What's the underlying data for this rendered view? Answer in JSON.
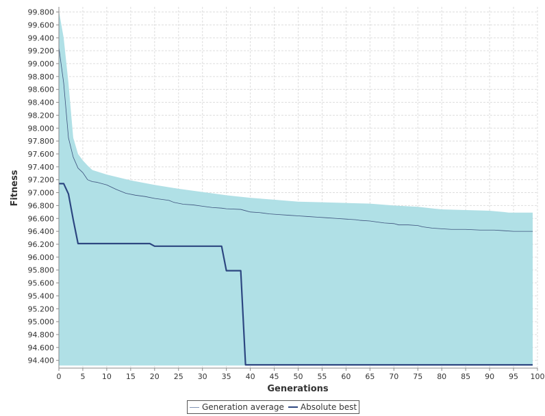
{
  "chart_data": {
    "type": "area",
    "xlabel": "Generations",
    "ylabel": "Fitness",
    "xlim": [
      0,
      100
    ],
    "ylim": [
      94.28,
      99.88
    ],
    "x_ticks": [
      0,
      5,
      10,
      15,
      20,
      25,
      30,
      35,
      40,
      45,
      50,
      55,
      60,
      65,
      70,
      75,
      80,
      85,
      90,
      95,
      100
    ],
    "y_ticks": [
      "94.400",
      "94.600",
      "94.800",
      "95.000",
      "95.200",
      "95.400",
      "95.600",
      "95.800",
      "96.000",
      "96.200",
      "96.400",
      "96.600",
      "96.800",
      "97.000",
      "97.200",
      "97.400",
      "97.600",
      "97.800",
      "98.000",
      "98.200",
      "98.400",
      "98.600",
      "98.800",
      "99.000",
      "99.200",
      "99.400",
      "99.600",
      "99.800"
    ],
    "grid": true,
    "legend_position": "bottom",
    "band": {
      "x": [
        0,
        1,
        2,
        3,
        4,
        5,
        6,
        7,
        10,
        15,
        20,
        25,
        30,
        35,
        40,
        45,
        50,
        55,
        60,
        65,
        70,
        75,
        80,
        85,
        90,
        93,
        94,
        99
      ],
      "upper": [
        99.82,
        99.4,
        98.7,
        97.85,
        97.6,
        97.5,
        97.42,
        97.35,
        97.28,
        97.19,
        97.12,
        97.06,
        97.01,
        96.96,
        96.92,
        96.89,
        96.86,
        96.85,
        96.84,
        96.83,
        96.8,
        96.78,
        96.74,
        96.73,
        96.72,
        96.7,
        96.69,
        96.69
      ],
      "lower": [
        94.32,
        94.32,
        94.32,
        94.32,
        94.32,
        94.32,
        94.32,
        94.32,
        94.32,
        94.32,
        94.32,
        94.32,
        94.32,
        94.32,
        94.32,
        94.32,
        94.32,
        94.32,
        94.32,
        94.32,
        94.32,
        94.32,
        94.32,
        94.32,
        94.32,
        94.32,
        94.32,
        94.32
      ],
      "color": "#b0e0e6"
    },
    "series": [
      {
        "name": "Generation average",
        "color": "#3a4f7a",
        "x": [
          0,
          1,
          2,
          3,
          4,
          5,
          6,
          7,
          8,
          9,
          10,
          12,
          14,
          16,
          18,
          20,
          22,
          23,
          24,
          26,
          28,
          30,
          32,
          34,
          35,
          38,
          39,
          40,
          42,
          44,
          46,
          48,
          50,
          52,
          54,
          56,
          58,
          60,
          62,
          63,
          65,
          66,
          68,
          70,
          71,
          73,
          75,
          76,
          78,
          80,
          82,
          85,
          88,
          91,
          93,
          95,
          97,
          99
        ],
        "values": [
          99.25,
          98.7,
          97.85,
          97.55,
          97.38,
          97.31,
          97.2,
          97.17,
          97.16,
          97.14,
          97.12,
          97.05,
          96.99,
          96.96,
          96.94,
          96.91,
          96.89,
          96.88,
          96.85,
          96.82,
          96.81,
          96.79,
          96.77,
          96.76,
          96.75,
          96.74,
          96.72,
          96.7,
          96.69,
          96.67,
          96.66,
          96.65,
          96.64,
          96.63,
          96.62,
          96.61,
          96.6,
          96.59,
          96.58,
          96.57,
          96.56,
          96.55,
          96.53,
          96.52,
          96.5,
          96.5,
          96.49,
          96.47,
          96.45,
          96.44,
          96.43,
          96.43,
          96.42,
          96.42,
          96.41,
          96.4,
          96.4,
          96.4
        ]
      },
      {
        "name": "Absolute best",
        "color": "#2c4680",
        "x": [
          0,
          1,
          2,
          3,
          4,
          19,
          20,
          34,
          35,
          38,
          39,
          99
        ],
        "values": [
          97.14,
          97.14,
          96.98,
          96.58,
          96.21,
          96.21,
          96.17,
          96.17,
          95.79,
          95.79,
          94.33,
          94.33
        ]
      }
    ]
  }
}
